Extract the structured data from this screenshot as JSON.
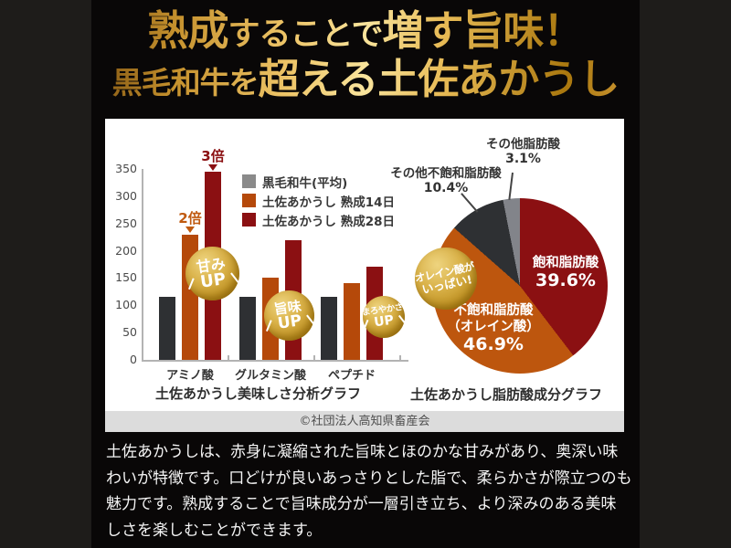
{
  "header": {
    "line1": {
      "a": "熟成",
      "b": "することで",
      "c": "増す旨味！"
    },
    "line2": {
      "a": "黒毛和牛を",
      "b": "超える土佐あかうし"
    }
  },
  "chart_data": [
    {
      "type": "bar",
      "title": "土佐あかうし美味しさ分析グラフ",
      "categories": [
        "アミノ酸",
        "グルタミン酸",
        "ペプチド"
      ],
      "series": [
        {
          "name": "黒毛和牛(平均)",
          "legend_color": "#8a8a8a",
          "bar_color": "#2e3033",
          "values": [
            115,
            115,
            115
          ]
        },
        {
          "name": "土佐あかうし 熟成14日",
          "legend_color": "#b5490a",
          "bar_color": "#b5490a",
          "values": [
            230,
            150,
            140
          ]
        },
        {
          "name": "土佐あかうし 熟成28日",
          "legend_color": "#8b1012",
          "bar_color": "#8b1012",
          "values": [
            345,
            220,
            170
          ]
        }
      ],
      "ylim": [
        0,
        350
      ],
      "yticks": [
        0,
        50,
        100,
        150,
        200,
        250,
        300,
        350
      ],
      "grid": false,
      "legend_position": "inside-top-right",
      "annotations": [
        {
          "text": "2倍",
          "color": "#c05a10",
          "target": "アミノ酸 熟成14日"
        },
        {
          "text": "3倍",
          "color": "#8b1012",
          "target": "アミノ酸 熟成28日"
        }
      ],
      "badges": [
        {
          "line1": "甘み",
          "line2": "UP"
        },
        {
          "line1": "旨味",
          "line2": "UP"
        },
        {
          "line1": "まろやかさ",
          "line2": "UP"
        }
      ]
    },
    {
      "type": "pie",
      "title": "土佐あかうし脂肪酸成分グラフ",
      "slices": [
        {
          "label": "飽和脂肪酸",
          "pct": 39.6,
          "pct_label": "39.6%",
          "color": "#8b1012"
        },
        {
          "label": "不飽和脂肪酸（オレイン酸）",
          "label_line1": "不飽和脂肪酸",
          "label_line2": "（オレイン酸）",
          "pct": 46.9,
          "pct_label": "46.9%",
          "color": "#bd560e"
        },
        {
          "label": "その他不飽和脂肪酸",
          "pct": 10.4,
          "pct_label": "10.4%",
          "color": "#2e3033"
        },
        {
          "label": "その他脂肪酸",
          "pct": 3.1,
          "pct_label": "3.1%",
          "color": "#82848a"
        }
      ],
      "badge": {
        "line1": "オレイン酸が",
        "line2": "いっぱい!"
      }
    }
  ],
  "footer": {
    "copyright": "©社団法人高知県畜産会"
  },
  "body": {
    "lines": [
      "土佐あかうしは、赤身に凝縮された旨味とほのかな甘みがあり、奥深い味",
      "わいが特徴です。口どけが良いあっさりとした脂で、柔らかさが際立つのも",
      "魅力です。熟成することで旨味成分が一層引き立ち、より深みのある美味",
      "しさを楽しむことができます。"
    ]
  },
  "colors": {
    "outer_background": "#1e1c1a",
    "inner_background": "#090707",
    "panel": "#ffffff",
    "copyright_strip": "#dcdcdc",
    "gold_light": "#f9e49c",
    "gold_dark": "#a9770e",
    "maroon": "#8b1012",
    "burnt_orange": "#b5490a",
    "charcoal": "#2e3033"
  }
}
